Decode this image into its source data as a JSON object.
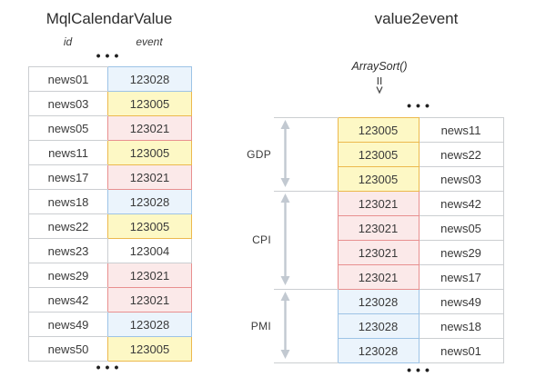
{
  "left": {
    "title": "MqlCalendarValue",
    "col_id_label": "id",
    "col_event_label": "event",
    "dots_top": "•••",
    "dots_bottom": "•••",
    "rows": [
      {
        "id": "news01",
        "event": "123028",
        "color": "blue"
      },
      {
        "id": "news03",
        "event": "123005",
        "color": "yellow"
      },
      {
        "id": "news05",
        "event": "123021",
        "color": "pink"
      },
      {
        "id": "news11",
        "event": "123005",
        "color": "yellow"
      },
      {
        "id": "news17",
        "event": "123021",
        "color": "pink"
      },
      {
        "id": "news18",
        "event": "123028",
        "color": "blue"
      },
      {
        "id": "news22",
        "event": "123005",
        "color": "yellow"
      },
      {
        "id": "news23",
        "event": "123004",
        "color": "none"
      },
      {
        "id": "news29",
        "event": "123021",
        "color": "pink"
      },
      {
        "id": "news42",
        "event": "123021",
        "color": "pink"
      },
      {
        "id": "news49",
        "event": "123028",
        "color": "blue"
      },
      {
        "id": "news50",
        "event": "123005",
        "color": "yellow"
      }
    ]
  },
  "right": {
    "title": "value2event",
    "sort_label": "ArraySort()",
    "dots_top": "•••",
    "dots_bottom": "•••",
    "groups": [
      {
        "label": "GDP",
        "color": "yellow",
        "rows": [
          {
            "event": "123005",
            "id": "news11"
          },
          {
            "event": "123005",
            "id": "news22"
          },
          {
            "event": "123005",
            "id": "news03"
          }
        ]
      },
      {
        "label": "CPI",
        "color": "pink",
        "rows": [
          {
            "event": "123021",
            "id": "news42"
          },
          {
            "event": "123021",
            "id": "news05"
          },
          {
            "event": "123021",
            "id": "news29"
          },
          {
            "event": "123021",
            "id": "news17"
          }
        ]
      },
      {
        "label": "PMI",
        "color": "blue",
        "rows": [
          {
            "event": "123028",
            "id": "news49"
          },
          {
            "event": "123028",
            "id": "news18"
          },
          {
            "event": "123028",
            "id": "news01"
          }
        ]
      }
    ]
  },
  "colors": {
    "blue": {
      "bg": "#ebf4fc",
      "border": "#9dc3e6"
    },
    "yellow": {
      "bg": "#fdf8c5",
      "border": "#ecb94d"
    },
    "pink": {
      "bg": "#fbe9e9",
      "border": "#e88f8f"
    },
    "none": {
      "bg": "#ffffff",
      "border": "#cbced1"
    },
    "table_border": "#cbced1",
    "span_arrow": "#c2c9d1",
    "glyph": "#4a4a4a"
  }
}
